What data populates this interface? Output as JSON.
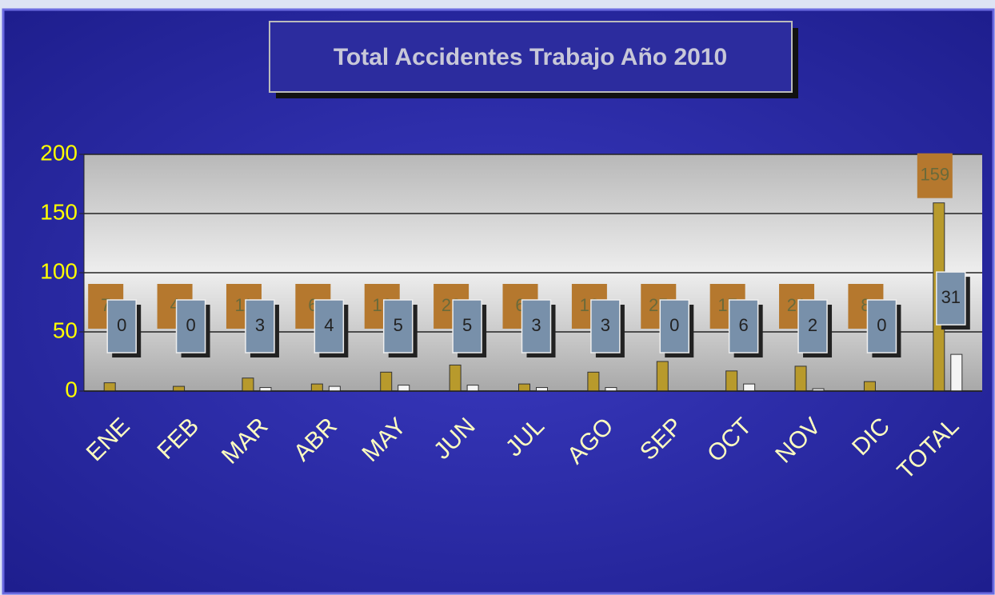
{
  "chart_data": {
    "type": "bar",
    "title": "Total Accidentes Trabajo Año 2010",
    "categories": [
      "ENE",
      "FEB",
      "MAR",
      "ABR",
      "MAY",
      "JUN",
      "JUL",
      "AGO",
      "SEP",
      "OCT",
      "NOV",
      "DIC",
      "TOTAL"
    ],
    "series": [
      {
        "color": "#b89a2c",
        "values": [
          7,
          4,
          11,
          6,
          16,
          22,
          6,
          16,
          25,
          17,
          21,
          8,
          159
        ]
      },
      {
        "color": "#f4f4f4",
        "values": [
          0,
          0,
          3,
          4,
          5,
          5,
          3,
          3,
          0,
          6,
          2,
          0,
          31
        ]
      }
    ],
    "ylim": [
      0,
      200
    ],
    "yticks": [
      0,
      50,
      100,
      150,
      200
    ],
    "grid": true
  }
}
